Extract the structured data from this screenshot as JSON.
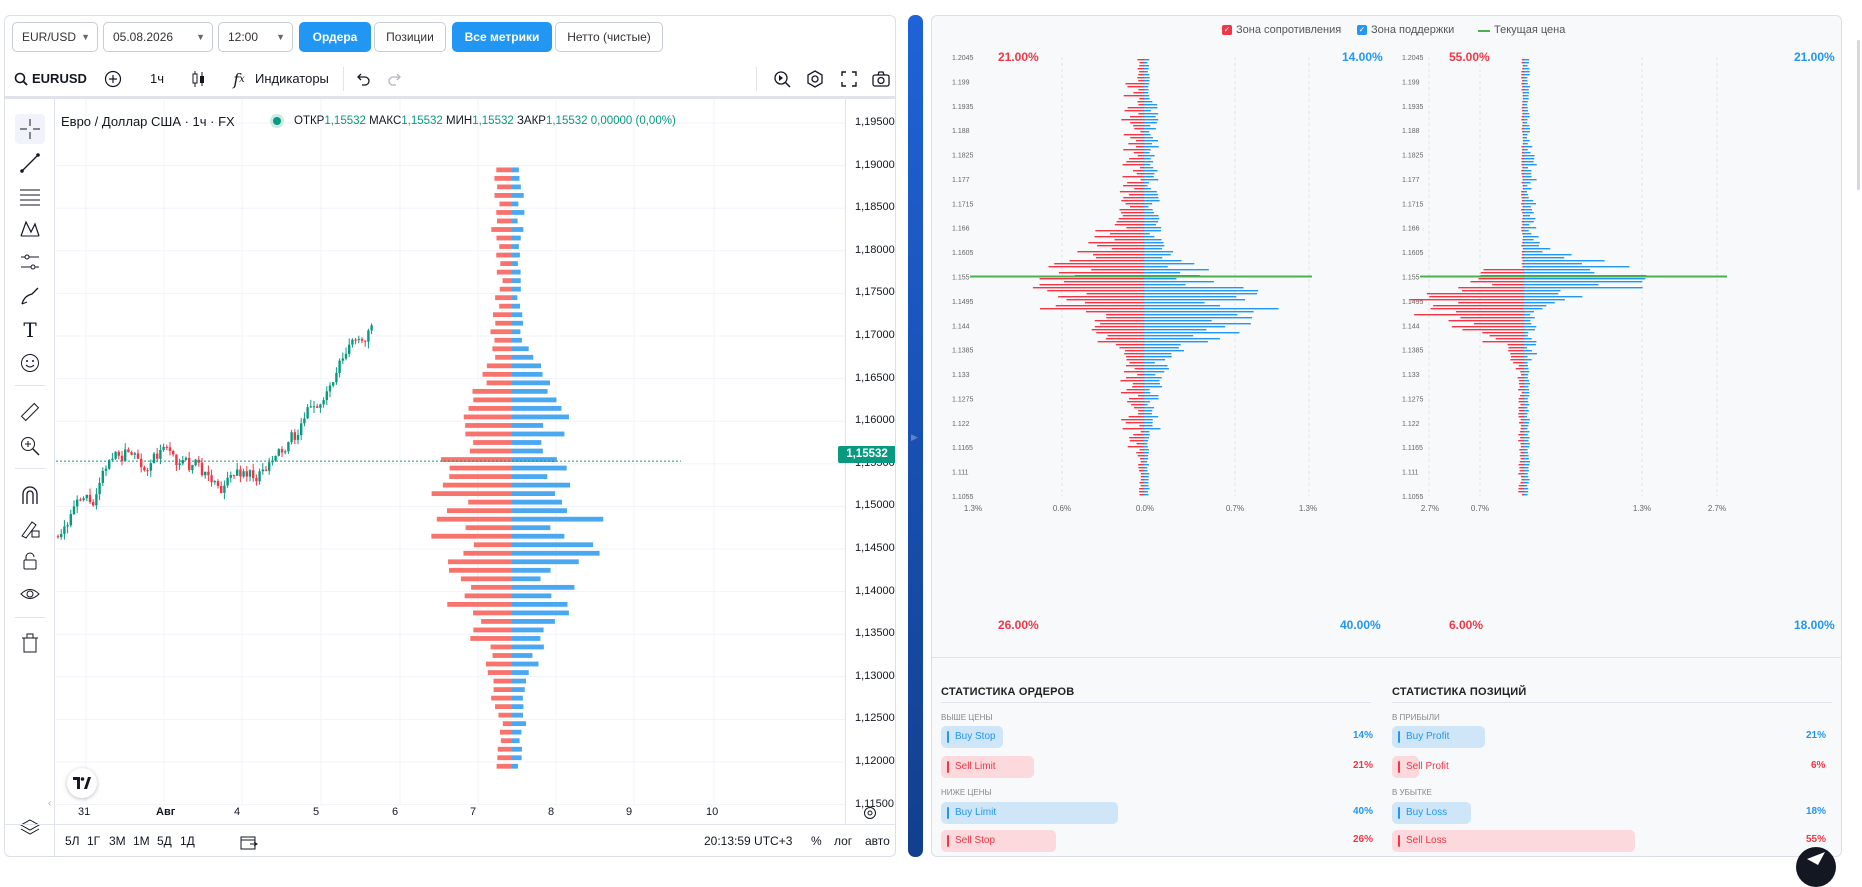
{
  "controls": {
    "symbol_select": "EUR/USD",
    "date_select": "05.08.2026",
    "time_select": "12:00",
    "tab_orders": "Ордера",
    "tab_positions": "Позиции",
    "tab_all_metrics": "Все метрики",
    "tab_net": "Нетто (чистые)"
  },
  "chart_toolbar": {
    "symbol": "EURUSD",
    "interval": "1ч",
    "indicators_label": "Индикаторы"
  },
  "legend": {
    "title": "Евро / Доллар США · 1ч · FX",
    "open_label": "ОТКР",
    "open": "1,15532",
    "high_label": "МАКС",
    "high": "1,15532",
    "low_label": "МИН",
    "low": "1,15532",
    "close_label": "ЗАКР",
    "close": "1,15532",
    "change": "0,00000 (0,00%)"
  },
  "price_axis": [
    "1,19500",
    "1,19000",
    "1,18500",
    "1,18000",
    "1,17500",
    "1,17000",
    "1,16500",
    "1,16000",
    "1,15500",
    "1,15000",
    "1,14500",
    "1,14000",
    "1,13500",
    "1,13000",
    "1,12500",
    "1,12000",
    "1,11500"
  ],
  "current_price_label": "1,15532",
  "time_axis": [
    "31",
    "Авг",
    "4",
    "5",
    "6",
    "7",
    "8",
    "9",
    "10"
  ],
  "bottom_bar": {
    "ranges": [
      "5Л",
      "1Г",
      "3М",
      "1М",
      "5Д",
      "1Д"
    ],
    "clock": "20:13:59 UTC+3",
    "percent": "%",
    "log": "лог",
    "auto": "авто"
  },
  "profile_legend": {
    "resistance": "Зона сопротивления",
    "support": "Зона поддержки",
    "current_price": "Текущая цена"
  },
  "colors": {
    "red": "#f23645",
    "blue": "#2196f3",
    "green": "#4caf50",
    "teal": "#089981",
    "red_hist": "#f7736b",
    "blue_hist": "#4aa8f0"
  },
  "orders_profile": {
    "top_left_pct": "21.00%",
    "top_right_pct": "14.00%",
    "bottom_left_pct": "26.00%",
    "bottom_right_pct": "40.00%",
    "y_ticks": [
      "1.2045",
      "1.199",
      "1.1935",
      "1.188",
      "1.1825",
      "1.177",
      "1.1715",
      "1.166",
      "1.1605",
      "1.155",
      "1.1495",
      "1.144",
      "1.1385",
      "1.133",
      "1.1275",
      "1.122",
      "1.1165",
      "1.111",
      "1.1055"
    ],
    "x_ticks": [
      "1.3%",
      "0.6%",
      "0.0%",
      "0.7%",
      "1.3%"
    ]
  },
  "positions_profile": {
    "top_left_pct": "55.00%",
    "top_right_pct": "21.00%",
    "bottom_left_pct": "6.00%",
    "bottom_right_pct": "18.00%",
    "y_ticks": [
      "1.2045",
      "1.199",
      "1.1935",
      "1.188",
      "1.1825",
      "1.177",
      "1.1715",
      "1.166",
      "1.1605",
      "1.155",
      "1.1495",
      "1.144",
      "1.1385",
      "1.133",
      "1.1275",
      "1.122",
      "1.1165",
      "1.111",
      "1.1055"
    ],
    "x_ticks": [
      "2.7%",
      "0.7%",
      "1.3%",
      "2.7%"
    ]
  },
  "order_stats": {
    "title": "СТАТИСТИКА ОРДЕРОВ",
    "above_label": "ВЫШЕ ЦЕНЫ",
    "below_label": "НИЖЕ ЦЕНЫ",
    "buy_stop": {
      "label": "Buy Stop",
      "value": "14%",
      "level": 14
    },
    "sell_limit": {
      "label": "Sell Limit",
      "value": "21%",
      "level": 21
    },
    "buy_limit": {
      "label": "Buy Limit",
      "value": "40%",
      "level": 40
    },
    "sell_stop": {
      "label": "Sell Stop",
      "value": "26%",
      "level": 26
    }
  },
  "position_stats": {
    "title": "СТАТИСТИКА ПОЗИЦИЙ",
    "profit_label": "В ПРИБЫЛИ",
    "loss_label": "В УБЫТКЕ",
    "buy_profit": {
      "label": "Buy Profit",
      "value": "21%",
      "level": 21
    },
    "sell_profit": {
      "label": "Sell Profit",
      "value": "6%",
      "level": 6
    },
    "buy_loss": {
      "label": "Buy Loss",
      "value": "18%",
      "level": 18
    },
    "sell_loss": {
      "label": "Sell Loss",
      "value": "55%",
      "level": 55
    }
  }
}
